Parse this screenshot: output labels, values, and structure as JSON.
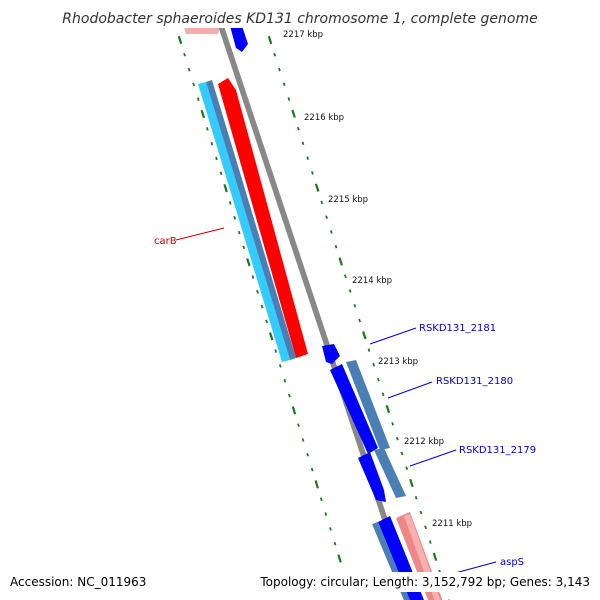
{
  "title": "Rhodobacter sphaeroides KD131 chromosome 1, complete genome",
  "accession": "Accession: NC_011963",
  "summary": "Topology: circular; Length: 3,152,792 bp; Genes: 3,143",
  "colors": {
    "backbone": "#888888",
    "tick": "#1a7a1a",
    "forward_gene": "#ff0000",
    "forward_cds": "#ee8888",
    "reverse_gene": "#0000ff",
    "reverse_cds": "#4a7fb5",
    "reverse_light": "#33ccff",
    "label_red": "#cc0000",
    "label_blue": "#0000cc"
  },
  "scale_labels": [
    "2217 kbp",
    "2216 kbp",
    "2215 kbp",
    "2214 kbp",
    "2213 kbp",
    "2212 kbp",
    "2211 kbp"
  ],
  "genes": [
    {
      "name": "carB",
      "color": "#cc0000"
    },
    {
      "name": "RSKD131_2181",
      "color": "#0000cc"
    },
    {
      "name": "RSKD131_2180",
      "color": "#0000cc"
    },
    {
      "name": "RSKD131_2179",
      "color": "#0000cc"
    },
    {
      "name": "aspS",
      "color": "#0000cc"
    }
  ]
}
